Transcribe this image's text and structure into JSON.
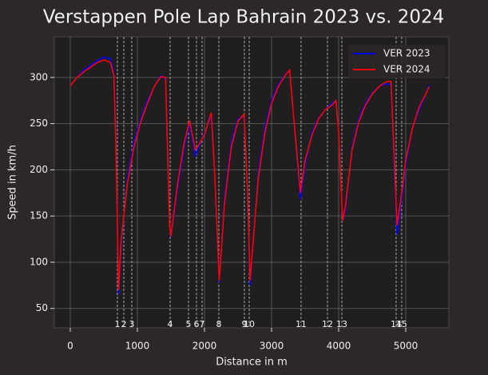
{
  "chart_data": {
    "type": "line",
    "title": "Verstappen Pole Lap Bahrain 2023 vs. 2024",
    "x_label": "Distance in m",
    "y_label": "Speed in km/h",
    "x": [
      0,
      100,
      200,
      300,
      400,
      500,
      600,
      650,
      680,
      720,
      760,
      850,
      950,
      1050,
      1150,
      1250,
      1350,
      1420,
      1480,
      1500,
      1600,
      1700,
      1780,
      1860,
      1900,
      2000,
      2100,
      2150,
      2220,
      2300,
      2400,
      2500,
      2590,
      2640,
      2680,
      2800,
      2900,
      3000,
      3100,
      3200,
      3270,
      3350,
      3430,
      3500,
      3600,
      3700,
      3800,
      3900,
      3960,
      4000,
      4060,
      4100,
      4200,
      4300,
      4400,
      4500,
      4600,
      4700,
      4780,
      4870,
      4950,
      5000,
      5100,
      5200,
      5300,
      5350
    ],
    "series": [
      {
        "name": "VER 2023",
        "color": "#0000ff",
        "values": [
          291,
          300,
          308,
          313,
          318,
          322,
          320,
          305,
          230,
          65,
          120,
          190,
          230,
          255,
          275,
          290,
          302,
          298,
          140,
          127,
          180,
          225,
          250,
          215,
          222,
          240,
          258,
          200,
          78,
          170,
          230,
          255,
          258,
          180,
          75,
          195,
          245,
          275,
          292,
          303,
          308,
          240,
          168,
          205,
          240,
          256,
          265,
          272,
          275,
          240,
          145,
          155,
          225,
          255,
          272,
          283,
          290,
          293,
          292,
          130,
          175,
          205,
          245,
          265,
          282,
          292
        ]
      },
      {
        "name": "VER 2024",
        "color": "#ff0000",
        "values": [
          291,
          300,
          306,
          311,
          316,
          319,
          316,
          302,
          225,
          70,
          125,
          185,
          225,
          252,
          272,
          290,
          301,
          300,
          140,
          128,
          185,
          230,
          253,
          222,
          225,
          238,
          262,
          200,
          80,
          165,
          225,
          253,
          260,
          180,
          80,
          190,
          240,
          272,
          290,
          302,
          308,
          240,
          175,
          210,
          237,
          255,
          265,
          270,
          275,
          240,
          145,
          160,
          222,
          252,
          270,
          282,
          290,
          295,
          296,
          140,
          180,
          210,
          245,
          268,
          282,
          290
        ]
      }
    ],
    "corners": {
      "numbers": [
        1,
        2,
        3,
        4,
        5,
        6,
        7,
        8,
        9,
        10,
        11,
        12,
        13,
        14,
        15
      ],
      "distances": [
        702,
        798,
        917,
        1488,
        1762,
        1881,
        1964,
        2214,
        2595,
        2667,
        3440,
        3833,
        4048,
        4857,
        4940
      ]
    },
    "xlim": [
      -238,
      5643
    ],
    "ylim": [
      29,
      344
    ],
    "xticks": [
      0,
      1000,
      2000,
      3000,
      4000,
      5000
    ],
    "yticks": [
      50,
      100,
      150,
      200,
      250,
      300
    ],
    "grid": true,
    "legend": "upper right"
  }
}
